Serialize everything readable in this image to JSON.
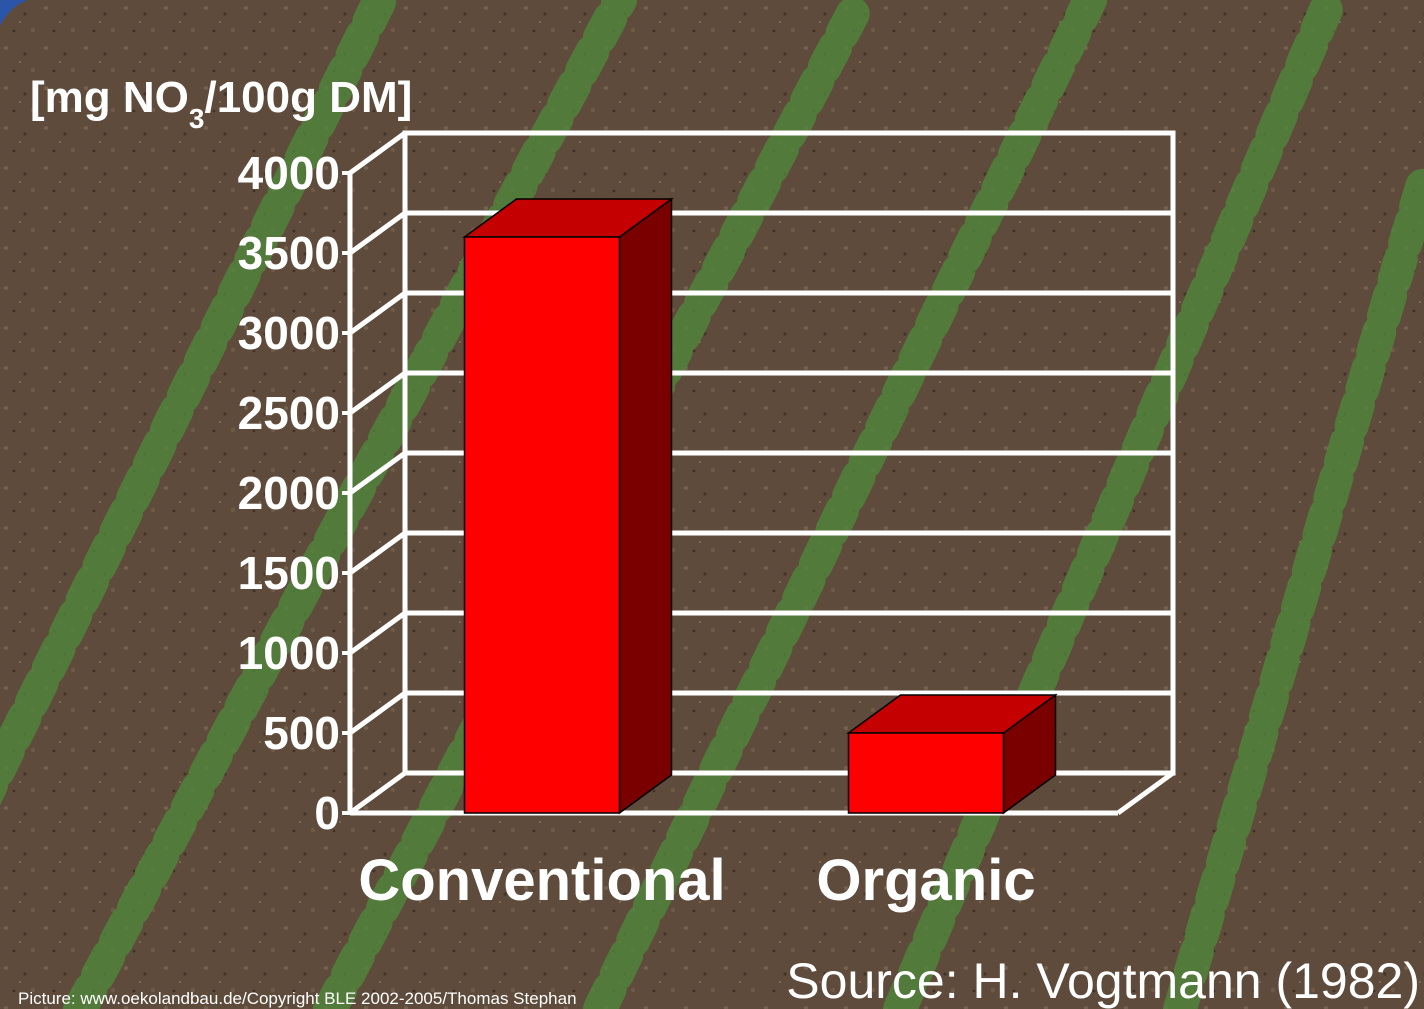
{
  "chart_data": {
    "type": "bar",
    "ylabel_prefix": "[mg NO",
    "ylabel_sub": "3",
    "ylabel_suffix": "/100g DM]",
    "categories": [
      "Conventional",
      "Organic"
    ],
    "values": [
      3600,
      500
    ],
    "ylim": [
      0,
      4000
    ],
    "yticks": [
      "0",
      "500",
      "1000",
      "1500",
      "2000",
      "2500",
      "3000",
      "3500",
      "4000"
    ],
    "grid": true,
    "bar_color": "#ff0000",
    "bar_top_color": "#c40000",
    "bar_side_color": "#7a0000",
    "source": "Source: H. Vogtmann (1982)",
    "picture_credit": "Picture: www.oekolandbau.de/Copyright BLE 2002-2005/Thomas Stephan"
  }
}
